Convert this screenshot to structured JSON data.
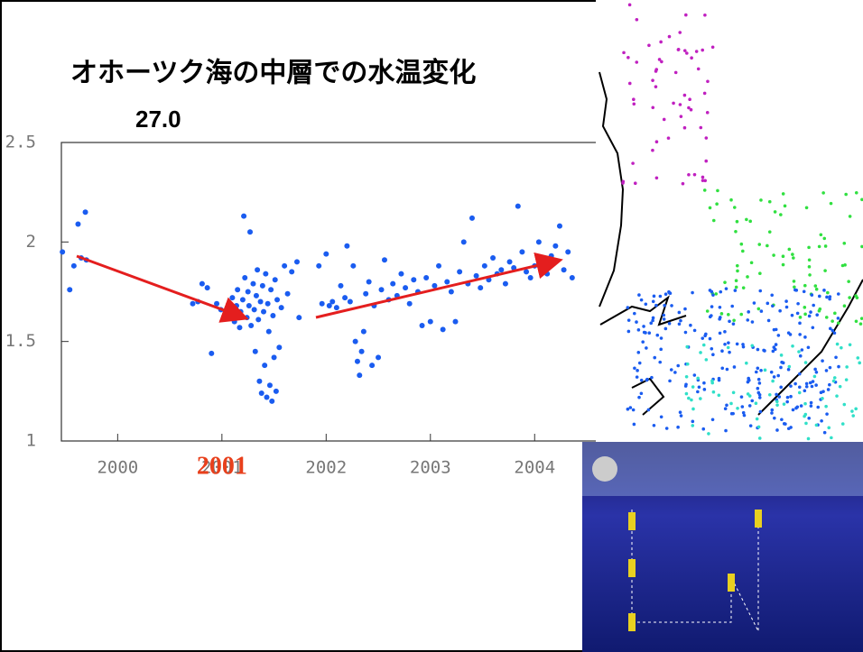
{
  "chart_data": {
    "type": "scatter",
    "title": "オホーツク海の中層での水温変化",
    "subtitle": "27.0",
    "annotation": "2001",
    "color": "#1a5cf0",
    "xlim": [
      1999.46,
      2004.5
    ],
    "ylim": [
      1,
      2.5
    ],
    "xticks": [
      2000,
      2001,
      2002,
      2003,
      2004
    ],
    "yticks": [
      1,
      1.5,
      2,
      2.5
    ],
    "x": [
      1999.47,
      1999.54,
      1999.58,
      1999.62,
      1999.65,
      1999.69,
      1999.7,
      2000.72,
      2000.77,
      2000.81,
      2000.86,
      2000.9,
      2000.95,
      2000.99,
      2001.08,
      2001.1,
      2001.12,
      2001.14,
      2001.15,
      2001.17,
      2001.18,
      2001.2,
      2001.21,
      2001.22,
      2001.24,
      2001.25,
      2001.26,
      2001.27,
      2001.28,
      2001.3,
      2001.31,
      2001.32,
      2001.33,
      2001.34,
      2001.35,
      2001.36,
      2001.37,
      2001.38,
      2001.39,
      2001.4,
      2001.41,
      2001.42,
      2001.43,
      2001.44,
      2001.45,
      2001.46,
      2001.47,
      2001.48,
      2001.49,
      2001.5,
      2001.51,
      2001.52,
      2001.53,
      2001.55,
      2001.57,
      2001.6,
      2001.63,
      2001.67,
      2001.72,
      2001.74,
      2001.93,
      2001.96,
      2002.0,
      2002.03,
      2002.06,
      2002.1,
      2002.14,
      2002.18,
      2002.2,
      2002.23,
      2002.26,
      2002.28,
      2002.3,
      2002.32,
      2002.34,
      2002.36,
      2002.38,
      2002.41,
      2002.44,
      2002.46,
      2002.5,
      2002.53,
      2002.56,
      2002.6,
      2002.64,
      2002.68,
      2002.72,
      2002.76,
      2002.8,
      2002.84,
      2002.88,
      2002.92,
      2002.96,
      2003.0,
      2003.04,
      2003.08,
      2003.12,
      2003.16,
      2003.2,
      2003.24,
      2003.28,
      2003.32,
      2003.36,
      2003.4,
      2003.44,
      2003.48,
      2003.52,
      2003.56,
      2003.6,
      2003.64,
      2003.68,
      2003.72,
      2003.76,
      2003.8,
      2003.84,
      2003.88,
      2003.92,
      2003.96,
      2004.0,
      2004.04,
      2004.08,
      2004.12,
      2004.16,
      2004.2,
      2004.24,
      2004.28,
      2004.32,
      2004.36
    ],
    "values": [
      1.95,
      1.76,
      1.88,
      2.09,
      1.92,
      2.15,
      1.91,
      1.69,
      1.7,
      1.79,
      1.77,
      1.44,
      1.69,
      1.66,
      1.63,
      1.72,
      1.6,
      1.68,
      1.76,
      1.57,
      1.65,
      1.71,
      2.13,
      1.82,
      1.62,
      1.75,
      1.68,
      2.05,
      1.58,
      1.79,
      1.66,
      1.45,
      1.73,
      1.86,
      1.61,
      1.3,
      1.7,
      1.24,
      1.78,
      1.65,
      1.38,
      1.84,
      1.22,
      1.69,
      1.55,
      1.28,
      1.76,
      1.2,
      1.63,
      1.42,
      1.81,
      1.25,
      1.71,
      1.47,
      1.67,
      1.88,
      1.74,
      1.85,
      1.9,
      1.62,
      1.88,
      1.69,
      1.94,
      1.68,
      1.7,
      1.67,
      1.78,
      1.72,
      1.98,
      1.7,
      1.88,
      1.5,
      1.4,
      1.33,
      1.45,
      1.55,
      1.74,
      1.8,
      1.38,
      1.68,
      1.42,
      1.76,
      1.91,
      1.71,
      1.79,
      1.73,
      1.84,
      1.77,
      1.69,
      1.81,
      1.75,
      1.58,
      1.82,
      1.6,
      1.78,
      1.88,
      1.56,
      1.8,
      1.75,
      1.6,
      1.85,
      2.0,
      1.79,
      2.12,
      1.83,
      1.77,
      1.88,
      1.81,
      1.92,
      1.84,
      1.86,
      1.79,
      1.9,
      1.87,
      2.18,
      1.95,
      1.85,
      1.82,
      1.88,
      2.0,
      1.9,
      1.84,
      1.93,
      1.98,
      2.08,
      1.86,
      1.95,
      1.82
    ]
  }
}
